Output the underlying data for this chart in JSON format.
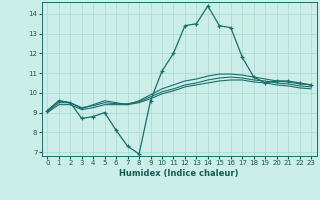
{
  "xlabel": "Humidex (Indice chaleur)",
  "bg_color": "#cceee8",
  "grid_color": "#aad8d0",
  "line_color": "#1a6e6a",
  "xlim": [
    -0.5,
    23.5
  ],
  "ylim": [
    6.8,
    14.6
  ],
  "yticks": [
    7,
    8,
    9,
    10,
    11,
    12,
    13,
    14
  ],
  "xticks": [
    0,
    1,
    2,
    3,
    4,
    5,
    6,
    7,
    8,
    9,
    10,
    11,
    12,
    13,
    14,
    15,
    16,
    17,
    18,
    19,
    20,
    21,
    22,
    23
  ],
  "series_main": [
    9.1,
    9.6,
    9.5,
    8.7,
    8.8,
    9.0,
    8.1,
    7.3,
    6.9,
    9.6,
    11.1,
    12.0,
    13.4,
    13.5,
    14.4,
    13.4,
    13.3,
    11.8,
    10.8,
    10.5,
    10.6,
    10.6,
    10.5,
    10.4
  ],
  "series_avg": [
    [
      9.1,
      9.6,
      9.5,
      9.2,
      9.4,
      9.6,
      9.5,
      9.4,
      9.6,
      9.9,
      10.2,
      10.4,
      10.6,
      10.7,
      10.85,
      10.95,
      10.95,
      10.9,
      10.8,
      10.7,
      10.6,
      10.55,
      10.45,
      10.4
    ],
    [
      9.05,
      9.5,
      9.5,
      9.25,
      9.35,
      9.5,
      9.45,
      9.45,
      9.55,
      9.8,
      10.05,
      10.2,
      10.4,
      10.5,
      10.65,
      10.75,
      10.8,
      10.75,
      10.65,
      10.6,
      10.5,
      10.45,
      10.35,
      10.3
    ],
    [
      9.0,
      9.4,
      9.4,
      9.15,
      9.25,
      9.4,
      9.4,
      9.4,
      9.5,
      9.7,
      9.95,
      10.1,
      10.3,
      10.4,
      10.5,
      10.6,
      10.65,
      10.65,
      10.55,
      10.5,
      10.4,
      10.35,
      10.25,
      10.2
    ]
  ]
}
